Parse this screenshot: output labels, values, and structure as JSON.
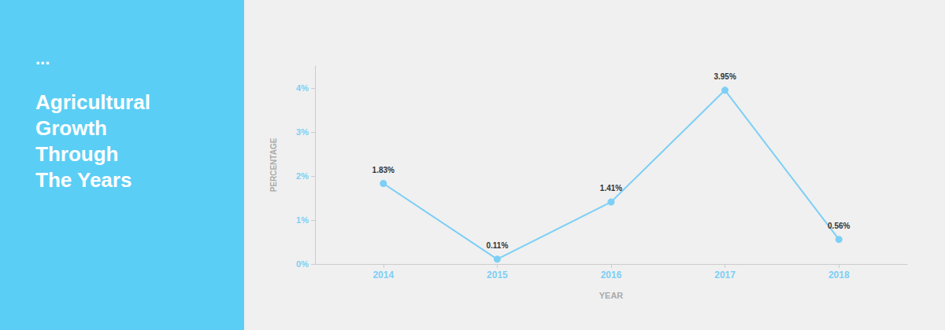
{
  "chart_data": {
    "type": "line",
    "title": "Agricultural\nGrowth\nThrough\nThe Years",
    "subtitle": "...",
    "x": [
      2014,
      2015,
      2016,
      2017,
      2018
    ],
    "values": [
      1.83,
      0.11,
      1.41,
      3.95,
      0.56
    ],
    "value_labels": [
      "1.83%",
      "0.11%",
      "1.41%",
      "3.95%",
      "0.56%"
    ],
    "color": "#7DCFF5",
    "marker": "circle",
    "xlabel": "YEAR",
    "ylabel": "PERCENTAGE",
    "xlim": [
      2013.4,
      2018.6
    ],
    "xticks": [
      2014,
      2015,
      2016,
      2017,
      2018
    ],
    "ylim": [
      0,
      4.5
    ],
    "yticks": [
      {
        "value": 0,
        "label": "0%"
      },
      {
        "value": 1,
        "label": "1%"
      },
      {
        "value": 2,
        "label": "2%"
      },
      {
        "value": 3,
        "label": "3%"
      },
      {
        "value": 4,
        "label": "4%"
      }
    ],
    "grid": false,
    "data_labels": true
  }
}
